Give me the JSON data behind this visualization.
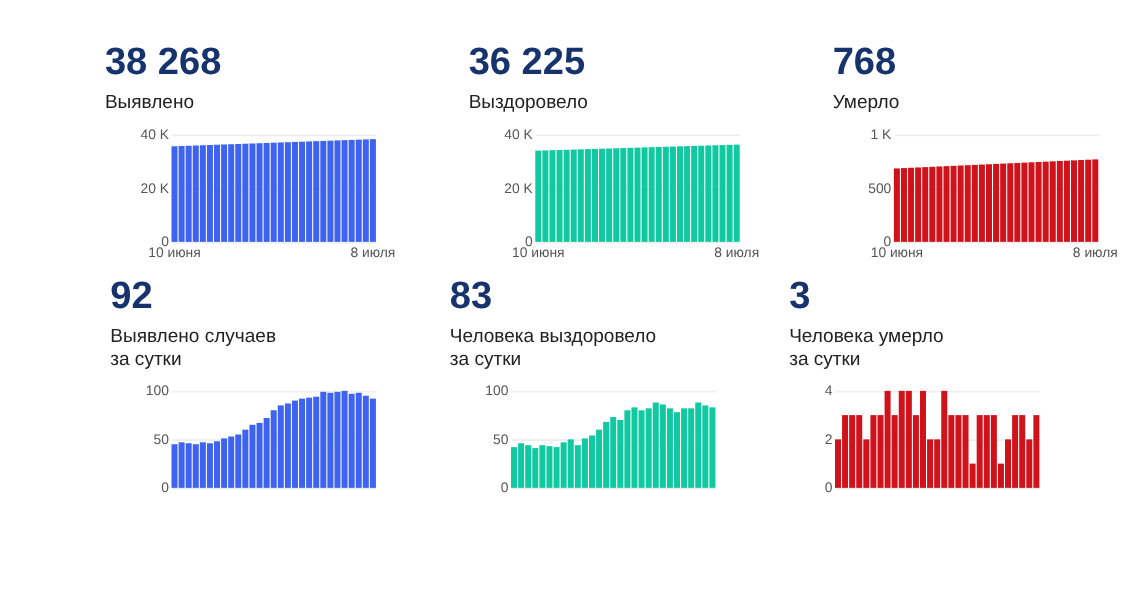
{
  "chart_data": [
    {
      "type": "bar",
      "title": "38 268",
      "subtitle": "Выявлено",
      "color": "#3d63f0",
      "categories": [
        "10 июня",
        null,
        null,
        null,
        null,
        null,
        null,
        null,
        null,
        null,
        null,
        null,
        null,
        null,
        null,
        null,
        null,
        null,
        null,
        null,
        null,
        null,
        null,
        null,
        null,
        null,
        null,
        null,
        "8 июля"
      ],
      "values": [
        35608,
        35703,
        35798,
        35893,
        35988,
        36083,
        36178,
        36273,
        36368,
        36463,
        36558,
        36653,
        36748,
        36843,
        36938,
        37033,
        37128,
        37223,
        37318,
        37413,
        37508,
        37603,
        37698,
        37793,
        37888,
        37983,
        38078,
        38173,
        38268
      ],
      "ylim": [
        0,
        40000
      ],
      "yticks": [
        0,
        {
          "value": 20000,
          "label": "20 K"
        },
        {
          "value": 40000,
          "label": "40 K"
        }
      ],
      "grid": "y"
    },
    {
      "type": "bar",
      "title": "36 225",
      "subtitle": "Выздоровело",
      "color": "#10c9a0",
      "categories": [
        "10 июня",
        null,
        null,
        null,
        null,
        null,
        null,
        null,
        null,
        null,
        null,
        null,
        null,
        null,
        null,
        null,
        null,
        null,
        null,
        null,
        null,
        null,
        null,
        null,
        null,
        null,
        null,
        null,
        "8 июля"
      ],
      "values": [
        33985,
        34065,
        34145,
        34225,
        34305,
        34385,
        34465,
        34545,
        34625,
        34705,
        34785,
        34865,
        34945,
        35025,
        35105,
        35185,
        35265,
        35345,
        35425,
        35505,
        35585,
        35665,
        35745,
        35825,
        35905,
        35985,
        36065,
        36145,
        36225
      ],
      "ylim": [
        0,
        40000
      ],
      "yticks": [
        0,
        {
          "value": 20000,
          "label": "20 K"
        },
        {
          "value": 40000,
          "label": "40 K"
        }
      ],
      "grid": "y"
    },
    {
      "type": "bar",
      "title": "768",
      "subtitle": "Умерло",
      "color": "#d0121b",
      "categories": [
        "10 июня",
        null,
        null,
        null,
        null,
        null,
        null,
        null,
        null,
        null,
        null,
        null,
        null,
        null,
        null,
        null,
        null,
        null,
        null,
        null,
        null,
        null,
        null,
        null,
        null,
        null,
        null,
        null,
        "8 июля"
      ],
      "values": [
        684,
        687,
        690,
        693,
        696,
        699,
        702,
        705,
        708,
        711,
        714,
        717,
        720,
        723,
        726,
        729,
        732,
        735,
        738,
        741,
        744,
        747,
        750,
        753,
        756,
        759,
        762,
        765,
        768
      ],
      "ylim": [
        0,
        1000
      ],
      "yticks": [
        0,
        500,
        {
          "value": 1000,
          "label": "1 K"
        }
      ],
      "grid": "y"
    },
    {
      "type": "bar",
      "title": "92",
      "subtitle": [
        "Выявлено случаев",
        "за сутки"
      ],
      "color": "#3d63f0",
      "categories": [
        null,
        null,
        null,
        null,
        null,
        null,
        null,
        null,
        null,
        null,
        null,
        null,
        null,
        null,
        null,
        null,
        null,
        null,
        null,
        null,
        null,
        null,
        null,
        null,
        null,
        null,
        null,
        null,
        null
      ],
      "values": [
        45,
        47,
        46,
        45,
        47,
        46,
        48,
        51,
        53,
        55,
        60,
        65,
        67,
        72,
        80,
        85,
        87,
        90,
        92,
        93,
        94,
        99,
        98,
        99,
        100,
        97,
        98,
        95,
        92
      ],
      "ylim": [
        0,
        100
      ],
      "yticks": [
        0,
        50,
        100
      ],
      "grid": "y",
      "tick_labels": "y"
    },
    {
      "type": "bar",
      "title": "83",
      "subtitle": [
        "Человека выздоровело",
        "за сутки"
      ],
      "color": "#10c9a0",
      "categories": [
        null,
        null,
        null,
        null,
        null,
        null,
        null,
        null,
        null,
        null,
        null,
        null,
        null,
        null,
        null,
        null,
        null,
        null,
        null,
        null,
        null,
        null,
        null,
        null,
        null,
        null,
        null,
        null,
        null
      ],
      "values": [
        42,
        46,
        44,
        41,
        44,
        43,
        42,
        47,
        50,
        44,
        51,
        54,
        60,
        68,
        73,
        70,
        80,
        83,
        80,
        82,
        88,
        86,
        82,
        78,
        82,
        82,
        88,
        85,
        83
      ],
      "ylim": [
        0,
        100
      ],
      "yticks": [
        0,
        50,
        100
      ],
      "grid": "y",
      "tick_labels": "y"
    },
    {
      "type": "bar",
      "title": "3",
      "subtitle": [
        "Человека умерло",
        "за сутки"
      ],
      "color": "#d0121b",
      "categories": [
        null,
        null,
        null,
        null,
        null,
        null,
        null,
        null,
        null,
        null,
        null,
        null,
        null,
        null,
        null,
        null,
        null,
        null,
        null,
        null,
        null,
        null,
        null,
        null,
        null,
        null,
        null,
        null,
        null
      ],
      "values": [
        2,
        3,
        3,
        3,
        2,
        3,
        3,
        4,
        3,
        4,
        4,
        3,
        4,
        2,
        2,
        4,
        3,
        3,
        3,
        1,
        3,
        3,
        3,
        1,
        2,
        3,
        3,
        2,
        3
      ],
      "ylim": [
        0,
        4
      ],
      "yticks": [
        0,
        2,
        4
      ],
      "grid": "y",
      "tick_labels": "y"
    }
  ]
}
